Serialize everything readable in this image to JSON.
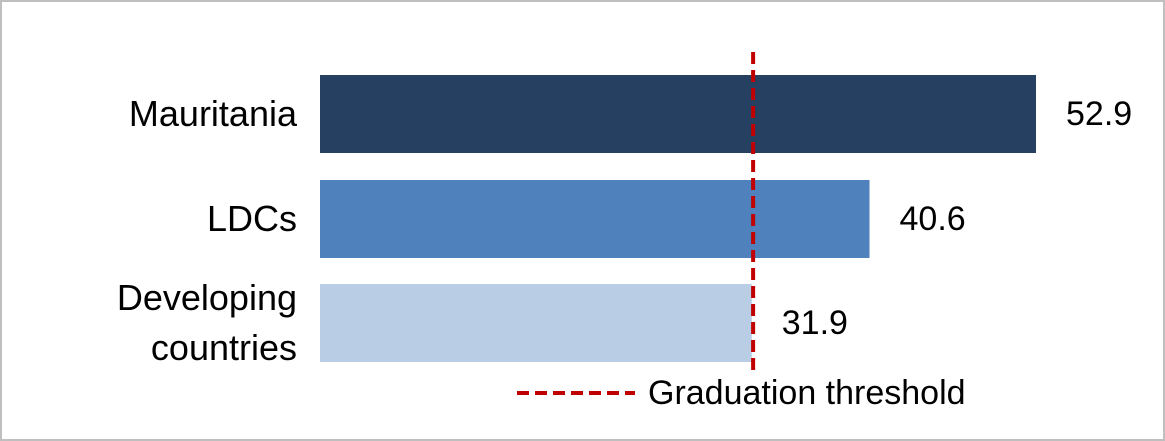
{
  "chart_data": {
    "type": "bar",
    "orientation": "horizontal",
    "categories": [
      "Mauritania",
      "LDCs",
      "Developing countries"
    ],
    "values": [
      52.9,
      40.6,
      31.9
    ],
    "colors": [
      "#264062",
      "#4f81bd",
      "#b9cde5"
    ],
    "threshold": {
      "label": "Graduation threshold",
      "value": 32,
      "color": "#c00000"
    }
  }
}
